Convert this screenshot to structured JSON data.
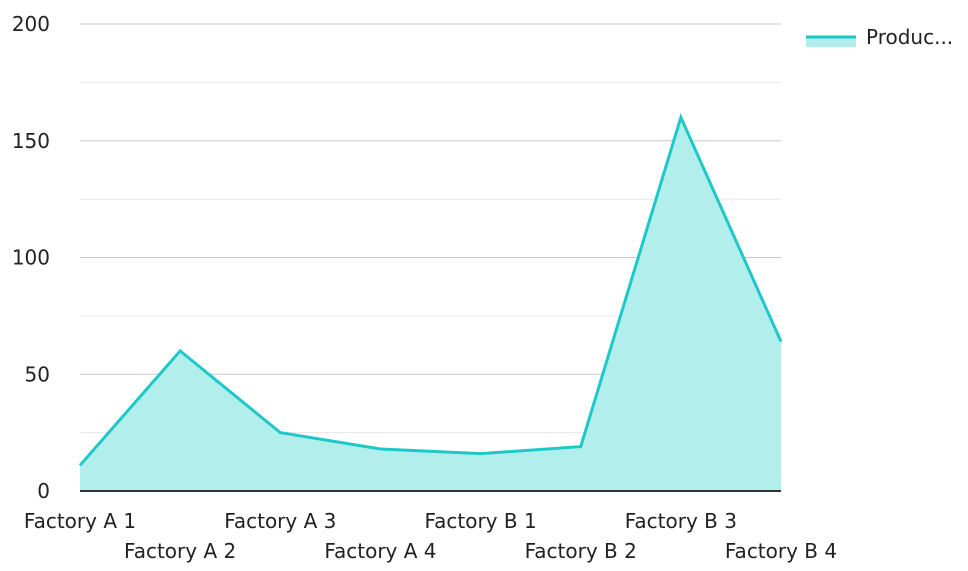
{
  "chart_data": {
    "type": "area",
    "categories": [
      "Factory A 1",
      "Factory A 2",
      "Factory A 3",
      "Factory A 4",
      "Factory B 1",
      "Factory B 2",
      "Factory B 3",
      "Factory B 4"
    ],
    "series": [
      {
        "name": "Produc...",
        "values": [
          11,
          60,
          25,
          18,
          16,
          19,
          160,
          64
        ]
      }
    ],
    "ylim": [
      0,
      200
    ],
    "yticks": [
      0,
      50,
      100,
      150,
      200
    ],
    "grid": true,
    "legend_position": "top-right",
    "colors": {
      "line": "#1ec8c8",
      "fill": "#b2eeec",
      "grid_major": "#c8c8c8",
      "grid_minor": "#e6e6e6",
      "axis": "#333333"
    }
  }
}
